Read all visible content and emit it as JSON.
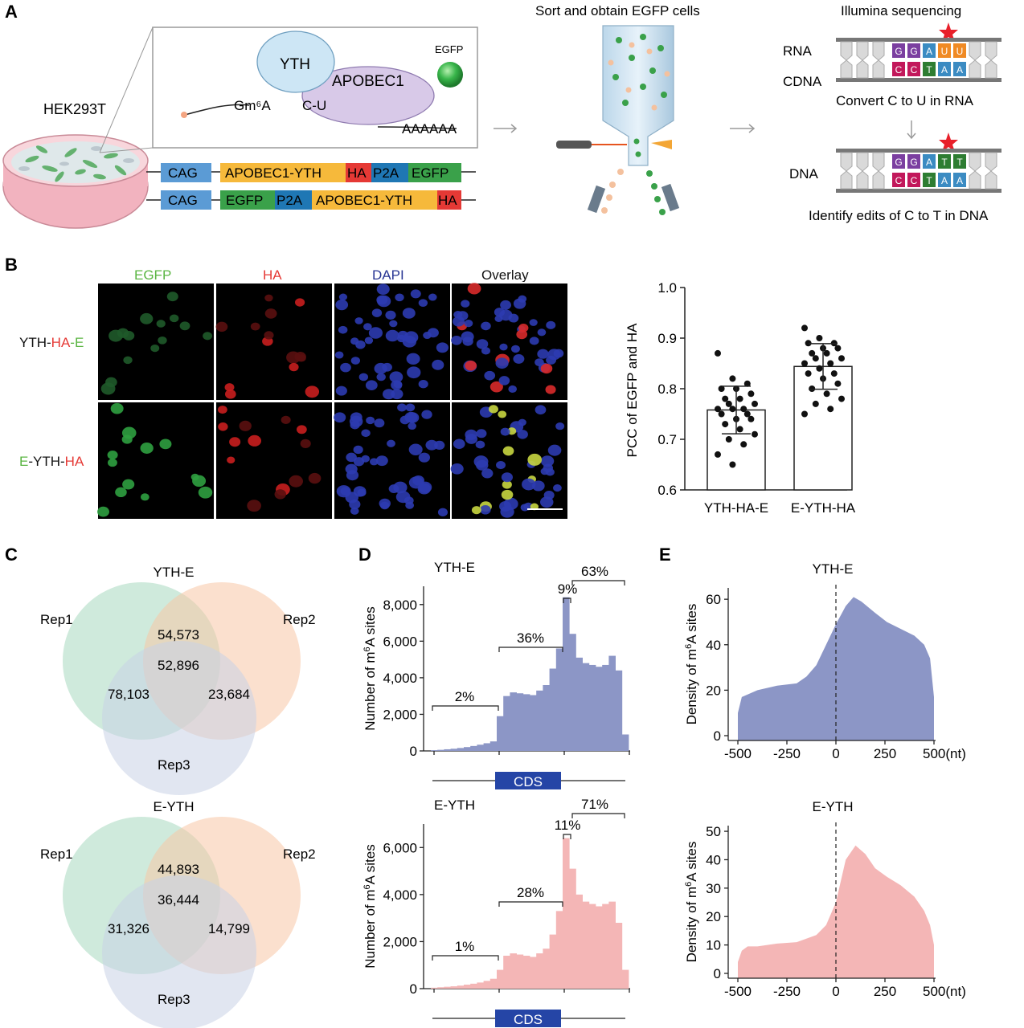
{
  "panel_labels": {
    "a": "A",
    "b": "B",
    "c": "C",
    "d": "D",
    "e": "E"
  },
  "panel_a": {
    "cell_line": "HEK293T",
    "yth": "YTH",
    "apobec": "APOBEC1",
    "egfp_icon_label": "EGFP",
    "gm6a": "Gm⁶A",
    "cu": "C-U",
    "polya": "AAAAAA",
    "construct1": [
      "CAG",
      "APOBEC1-YTH",
      "HA",
      "P2A",
      "EGFP"
    ],
    "construct2": [
      "CAG",
      "EGFP",
      "P2A",
      "APOBEC1-YTH",
      "HA"
    ],
    "sort_title": "Sort and obtain EGFP cells",
    "seq_title": "Illumina sequencing",
    "rna": "RNA",
    "cdna": "CDNA",
    "dna": "DNA",
    "rna_top": [
      "G",
      "G",
      "A",
      "U",
      "U"
    ],
    "rna_bottom": [
      "C",
      "C",
      "T",
      "A",
      "A"
    ],
    "dna_top": [
      "G",
      "G",
      "A",
      "T",
      "T"
    ],
    "dna_bottom": [
      "C",
      "C",
      "T",
      "A",
      "A"
    ],
    "convert": "Convert C to U in RNA",
    "identify": "Identify edits of C to T in DNA",
    "colors": {
      "CAG": "#5b9bd5",
      "APOBEC1-YTH": "#f6b93b",
      "HA": "#e53935",
      "P2A": "#1f77b4",
      "EGFP": "#3aa14a"
    }
  },
  "panel_b": {
    "columns": [
      "EGFP",
      "HA",
      "DAPI",
      "Overlay"
    ],
    "row1": [
      "YTH-",
      "HA",
      "-E"
    ],
    "row2": [
      "E",
      "-YTH-",
      "HA"
    ],
    "chart_data": {
      "type": "bar",
      "ylabel": "PCC of EGFP and HA",
      "ylim": [
        0.6,
        1.0
      ],
      "yticks": [
        "0.6",
        "0.7",
        "0.8",
        "0.9",
        "1.0"
      ],
      "categories": [
        "YTH-HA-E",
        "E-YTH-HA"
      ],
      "values": [
        0.758,
        0.844
      ],
      "sd": [
        0.047,
        0.045
      ],
      "points": [
        [
          0.87,
          0.82,
          0.81,
          0.8,
          0.8,
          0.79,
          0.78,
          0.78,
          0.77,
          0.77,
          0.76,
          0.76,
          0.76,
          0.75,
          0.75,
          0.74,
          0.74,
          0.73,
          0.72,
          0.71,
          0.7,
          0.69,
          0.67,
          0.65
        ],
        [
          0.92,
          0.9,
          0.89,
          0.89,
          0.88,
          0.88,
          0.87,
          0.87,
          0.86,
          0.86,
          0.85,
          0.85,
          0.84,
          0.83,
          0.83,
          0.82,
          0.81,
          0.8,
          0.79,
          0.78,
          0.77,
          0.76,
          0.75
        ]
      ]
    }
  },
  "panel_c": {
    "venn": [
      {
        "title": "YTH-E",
        "rep1": "Rep1",
        "rep2": "Rep2",
        "rep3": "Rep3",
        "ab": "54,573",
        "abc": "52,896",
        "ac": "78,103",
        "bc": "23,684"
      },
      {
        "title": "E-YTH",
        "rep1": "Rep1",
        "rep2": "Rep2",
        "rep3": "Rep3",
        "ab": "44,893",
        "abc": "36,444",
        "ac": "31,326",
        "bc": "14,799"
      }
    ]
  },
  "panel_d": {
    "ylabel_parts": [
      "Number of m",
      "6",
      "A sites"
    ],
    "cds": "CDS",
    "chart_data": [
      {
        "type": "bar",
        "title": "YTH-E",
        "yticks": [
          "0",
          "2,000",
          "4,000",
          "6,000",
          "8,000"
        ],
        "ylim": [
          0,
          9000
        ],
        "color": "#8c96c6",
        "values": [
          40,
          60,
          90,
          120,
          160,
          210,
          270,
          340,
          420,
          520,
          1900,
          3000,
          3200,
          3150,
          3100,
          3050,
          3300,
          3600,
          4500,
          5600,
          8400,
          6400,
          5100,
          4800,
          4700,
          4600,
          4700,
          5200,
          4400,
          900
        ],
        "pct": [
          "2%",
          "36%",
          "9%",
          "63%"
        ]
      },
      {
        "type": "bar",
        "title": "E-YTH",
        "yticks": [
          "0",
          "2,000",
          "4,000",
          "6,000"
        ],
        "ylim": [
          0,
          7000
        ],
        "color": "#f4b6b6",
        "values": [
          40,
          60,
          80,
          100,
          130,
          170,
          210,
          260,
          330,
          420,
          800,
          1400,
          1500,
          1450,
          1400,
          1350,
          1500,
          1700,
          2300,
          3300,
          6400,
          5100,
          4000,
          3700,
          3600,
          3500,
          3600,
          3700,
          2800,
          800
        ],
        "pct": [
          "1%",
          "28%",
          "11%",
          "71%"
        ]
      }
    ]
  },
  "panel_e": {
    "ylabel_parts": [
      "Density of m",
      "6",
      "A sites"
    ],
    "xticks": [
      "-500",
      "-250",
      "0",
      "250",
      "500(nt)"
    ],
    "chart_data": [
      {
        "type": "area",
        "title": "YTH-E",
        "color": "#8c96c6",
        "ylim": [
          0,
          65
        ],
        "yticks": [
          "0",
          "20",
          "40",
          "60"
        ],
        "x": [
          -500,
          -480,
          -400,
          -300,
          -200,
          -150,
          -100,
          -50,
          0,
          50,
          90,
          130,
          200,
          260,
          330,
          400,
          450,
          480,
          500
        ],
        "y": [
          10,
          17,
          20,
          22,
          23,
          26,
          31,
          40,
          49,
          57,
          61,
          59,
          54,
          50,
          47,
          44,
          40,
          34,
          17
        ]
      },
      {
        "type": "area",
        "title": "E-YTH",
        "color": "#f4b6b6",
        "ylim": [
          0,
          52
        ],
        "yticks": [
          "0",
          "10",
          "20",
          "30",
          "40",
          "50"
        ],
        "x": [
          -500,
          -480,
          -450,
          -400,
          -300,
          -200,
          -100,
          -50,
          0,
          50,
          100,
          150,
          200,
          260,
          330,
          400,
          450,
          480,
          500
        ],
        "y": [
          4,
          8,
          9.5,
          9.5,
          10.5,
          11,
          13.5,
          17,
          25,
          40,
          45,
          42,
          37,
          34,
          31,
          27,
          22,
          17,
          10
        ]
      }
    ]
  }
}
